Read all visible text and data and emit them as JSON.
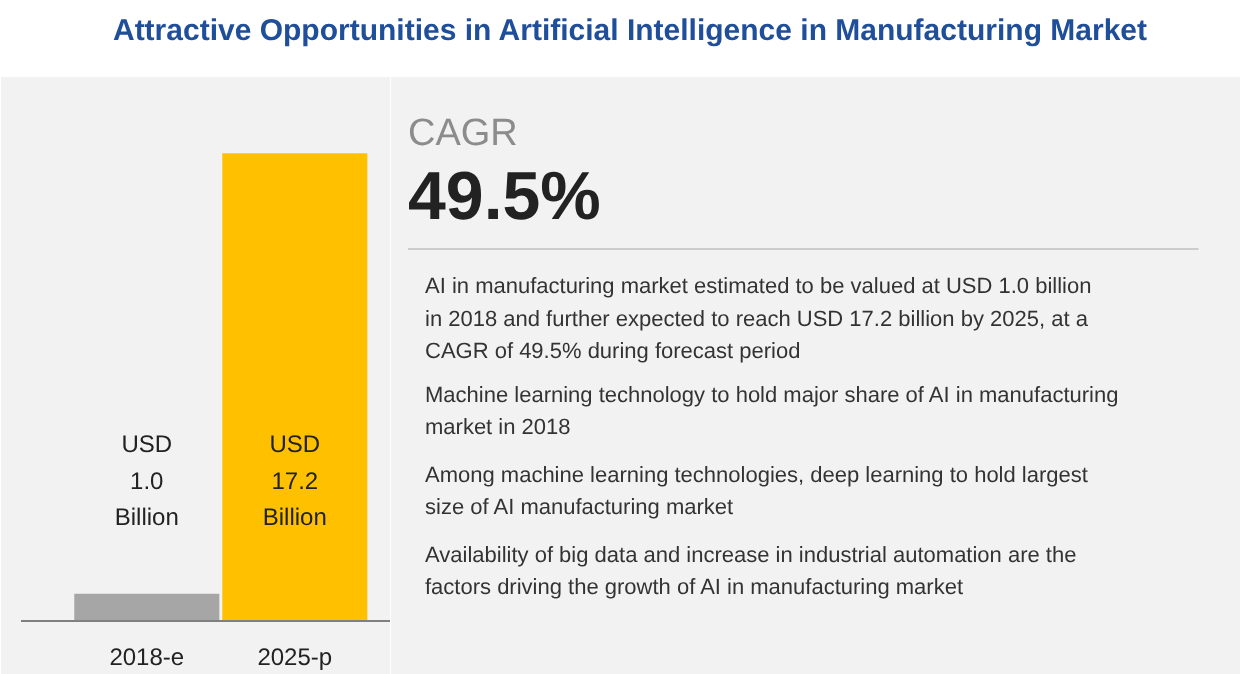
{
  "chart_data": {
    "type": "bar",
    "title": "Attractive Opportunities in Artificial Intelligence in Manufacturing Market",
    "categories": [
      "2018-e",
      "2025-p"
    ],
    "values": [
      1.0,
      17.2
    ],
    "colors": [
      "#a6a6a6",
      "#ffc000"
    ],
    "value_labels": [
      "USD\n1.0\nBillion",
      "USD\n17.2\nBillion"
    ],
    "annotations": [
      "CAGR",
      "49.5%",
      "AI in manufacturing market estimated to be valued at USD 1.0 billion in 2018 and further expected to reach USD 17.2 billion by 2025, at a CAGR of 49.5% during forecast period",
      "Machine learning technology to hold major share of AI in manufacturing market in 2018",
      "Among machine learning technologies, deep learning to hold largest size of AI manufacturing market",
      "Availability of big data and increase in industrial automation are the factors driving the growth of AI in manufacturing market"
    ]
  }
}
